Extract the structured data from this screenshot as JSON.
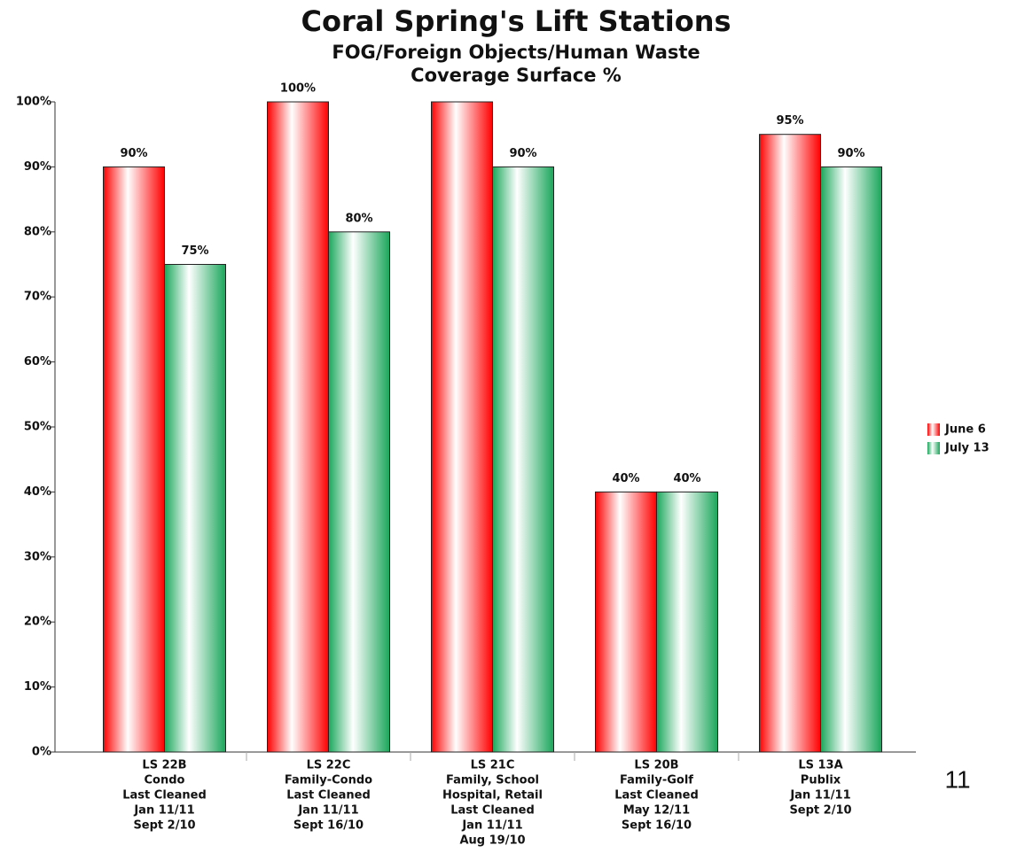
{
  "chart_data": {
    "type": "bar",
    "title": "Coral Spring's Lift Stations",
    "subtitle": [
      "FOG/Foreign Objects/Human Waste",
      "Coverage Surface %"
    ],
    "categories": [
      [
        "LS 22B",
        "Condo",
        "Last Cleaned",
        "Jan 11/11",
        "Sept 2/10"
      ],
      [
        "LS 22C",
        "Family-Condo",
        "Last Cleaned",
        "Jan 11/11",
        "Sept 16/10"
      ],
      [
        "LS 21C",
        "Family, School",
        "Hospital, Retail",
        "Last Cleaned",
        "Jan 11/11",
        "Aug 19/10"
      ],
      [
        "LS 20B",
        "Family-Golf",
        "Last Cleaned",
        "May 12/11",
        "Sept 16/10"
      ],
      [
        "LS 13A",
        "Publix",
        "Jan 11/11",
        "Sept 2/10"
      ]
    ],
    "series": [
      {
        "name": "June 6",
        "color": "#ff0000",
        "values": [
          90,
          100,
          100,
          40,
          95
        ],
        "value_labels": [
          "90%",
          "100%",
          null,
          "40%",
          "95%"
        ]
      },
      {
        "name": "July 13",
        "color": "#1aa65a",
        "values": [
          75,
          80,
          90,
          40,
          90
        ],
        "value_labels": [
          "75%",
          "80%",
          "90%",
          "40%",
          "90%"
        ]
      }
    ],
    "ylim": [
      0,
      100
    ],
    "yticks": [
      {
        "value": 0,
        "label": "0%"
      },
      {
        "value": 10,
        "label": "10%"
      },
      {
        "value": 20,
        "label": "20%"
      },
      {
        "value": 30,
        "label": "30%"
      },
      {
        "value": 40,
        "label": "40%"
      },
      {
        "value": 50,
        "label": "50%"
      },
      {
        "value": 60,
        "label": "60%"
      },
      {
        "value": 70,
        "label": "70%"
      },
      {
        "value": 80,
        "label": "80%"
      },
      {
        "value": 90,
        "label": "90%"
      },
      {
        "value": 100,
        "label": "100%"
      }
    ],
    "grid": false,
    "legend": "right",
    "annotations": [
      "11"
    ]
  }
}
